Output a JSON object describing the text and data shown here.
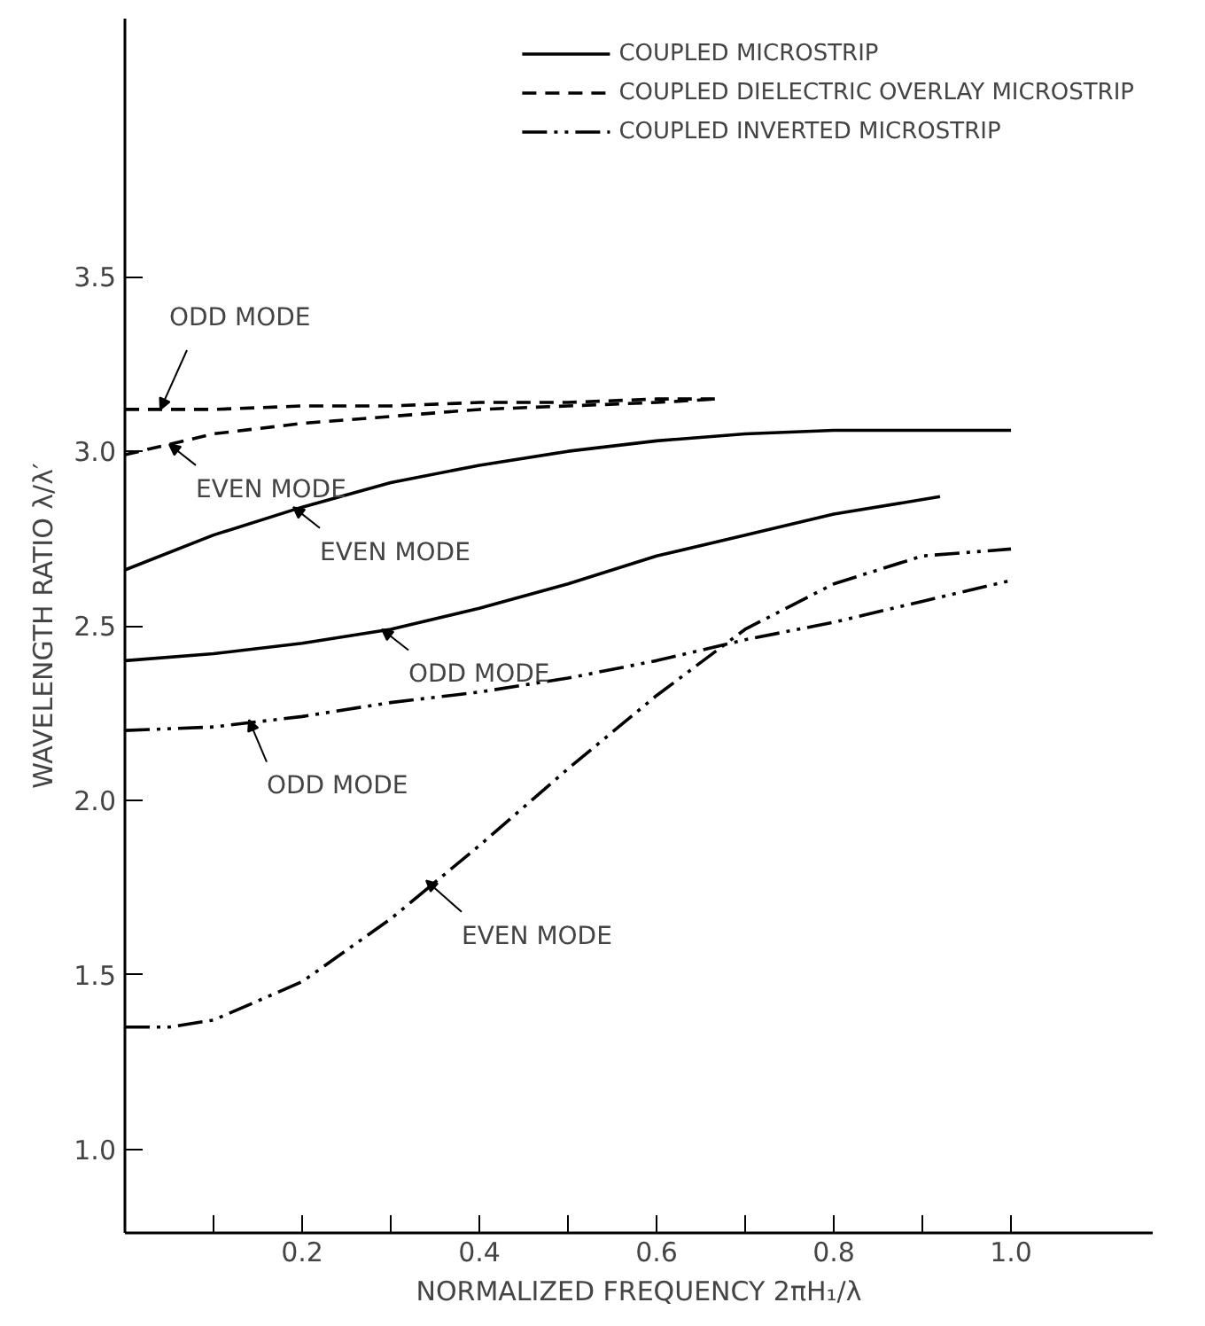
{
  "chart_data": {
    "type": "line",
    "xlabel": "NORMALIZED FREQUENCY 2πH₁/λ",
    "ylabel": "WAVELENGTH RATIO λ/λ′",
    "xlim": [
      0,
      1.16
    ],
    "ylim": [
      0.76,
      4.24
    ],
    "xticks": [
      {
        "value": 0.1,
        "label": null
      },
      {
        "value": 0.2,
        "label": "0.2"
      },
      {
        "value": 0.3,
        "label": null
      },
      {
        "value": 0.4,
        "label": "0.4"
      },
      {
        "value": 0.5,
        "label": null
      },
      {
        "value": 0.6,
        "label": "0.6"
      },
      {
        "value": 0.7,
        "label": null
      },
      {
        "value": 0.8,
        "label": "0.8"
      },
      {
        "value": 0.9,
        "label": null
      },
      {
        "value": 1.0,
        "label": "1.0"
      }
    ],
    "yticks": [
      {
        "value": 1.0,
        "label": "1.0"
      },
      {
        "value": 1.5,
        "label": "1.5"
      },
      {
        "value": 2.0,
        "label": "2.0"
      },
      {
        "value": 2.5,
        "label": "2.5"
      },
      {
        "value": 3.0,
        "label": "3.0"
      },
      {
        "value": 3.5,
        "label": "3.5"
      }
    ],
    "grid": false,
    "legend": "top right",
    "marker": "none",
    "series": [
      {
        "name": "COUPLED MICROSTRIP",
        "color": "#000000",
        "line_style": "solid",
        "x": [
          0,
          0.1,
          0.2,
          0.3,
          0.4,
          0.5,
          0.6,
          0.7,
          0.8,
          0.9,
          1.0
        ],
        "values": [
          2.66,
          2.76,
          2.84,
          2.91,
          2.96,
          3.0,
          3.03,
          3.05,
          3.06,
          3.06,
          3.06
        ]
      },
      {
        "color": "#000000",
        "line_style": "solid",
        "x": [
          0,
          0.1,
          0.2,
          0.3,
          0.4,
          0.5,
          0.6,
          0.7,
          0.8,
          0.92
        ],
        "values": [
          2.4,
          2.42,
          2.45,
          2.49,
          2.55,
          2.62,
          2.7,
          2.76,
          2.82,
          2.87
        ]
      },
      {
        "name": "COUPLED DIELECTRIC OVERLAY MICROSTRIP",
        "color": "#000000",
        "line_style": "dashed",
        "x": [
          0,
          0.1,
          0.2,
          0.3,
          0.4,
          0.5,
          0.6,
          0.67
        ],
        "values": [
          3.12,
          3.12,
          3.13,
          3.13,
          3.14,
          3.14,
          3.15,
          3.15
        ]
      },
      {
        "color": "#000000",
        "line_style": "dashed",
        "x": [
          0,
          0.05,
          0.1,
          0.2,
          0.3,
          0.4,
          0.5,
          0.6,
          0.67
        ],
        "values": [
          2.99,
          3.02,
          3.05,
          3.08,
          3.1,
          3.12,
          3.13,
          3.14,
          3.15
        ]
      },
      {
        "name": "COUPLED INVERTED MICROSTRIP",
        "color": "#000000",
        "line_style": "dashdot",
        "x": [
          0,
          0.1,
          0.2,
          0.3,
          0.4,
          0.5,
          0.6,
          0.7,
          0.8,
          0.9,
          1.0
        ],
        "values": [
          2.2,
          2.21,
          2.24,
          2.28,
          2.31,
          2.35,
          2.4,
          2.46,
          2.51,
          2.57,
          2.63
        ]
      },
      {
        "color": "#000000",
        "line_style": "dashdot",
        "x": [
          0,
          0.05,
          0.1,
          0.2,
          0.3,
          0.4,
          0.5,
          0.6,
          0.7,
          0.8,
          0.9,
          1.0
        ],
        "values": [
          1.35,
          1.35,
          1.37,
          1.48,
          1.66,
          1.87,
          2.09,
          2.3,
          2.49,
          2.62,
          2.7,
          2.72
        ]
      }
    ],
    "annotations": [
      {
        "text": "ODD MODE",
        "x": 0.04,
        "y": 3.12
      },
      {
        "text": "EVEN MODE",
        "x": 0.05,
        "y": 3.02
      },
      {
        "text": "EVEN MODE",
        "x": 0.19,
        "y": 2.84
      },
      {
        "text": "ODD MODE",
        "x": 0.29,
        "y": 2.49
      },
      {
        "text": "ODD MODE",
        "x": 0.14,
        "y": 2.23
      },
      {
        "text": "EVEN MODE",
        "x": 0.34,
        "y": 1.77
      }
    ]
  }
}
